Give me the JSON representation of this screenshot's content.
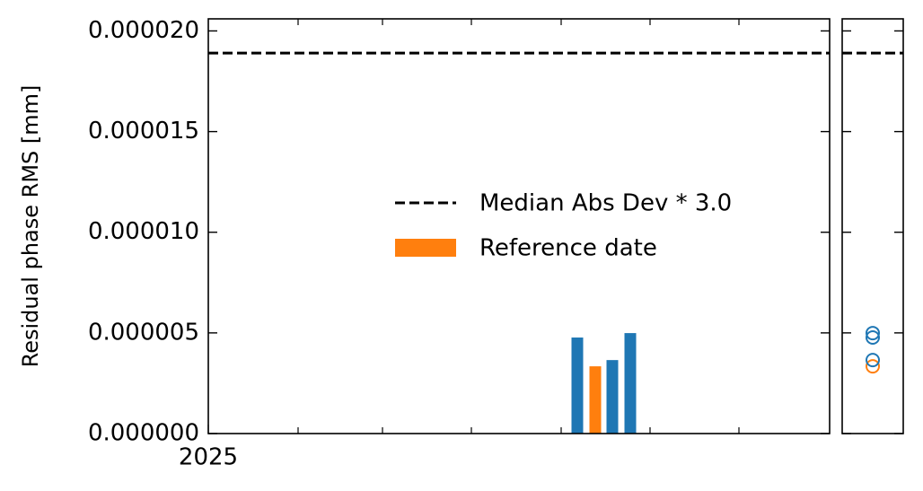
{
  "chart_data": {
    "type": "bar",
    "ylabel": "Residual phase RMS [mm]",
    "x_tick_labels": [
      "2025"
    ],
    "categories": [
      null,
      null,
      null,
      null
    ],
    "values": [
      4.77e-06,
      3.34e-06,
      3.65e-06,
      4.99e-06
    ],
    "colors": [
      "#1f77b4",
      "#ff7f0e",
      "#1f77b4",
      "#1f77b4"
    ],
    "ylim": [
      0,
      2.06e-05
    ],
    "yticks": [
      {
        "value": 0,
        "label": "0.000000"
      },
      {
        "value": 5e-06,
        "label": "0.000005"
      },
      {
        "value": 1e-05,
        "label": "0.000010"
      },
      {
        "value": 1.5e-05,
        "label": "0.000015"
      },
      {
        "value": 2e-05,
        "label": "0.000020"
      }
    ],
    "threshold": {
      "name": "Median Abs Dev * 3.0",
      "value": 1.89e-05,
      "color": "#000000"
    },
    "reference": {
      "name": "Reference date",
      "color": "#ff7f0e"
    },
    "grid": false
  }
}
